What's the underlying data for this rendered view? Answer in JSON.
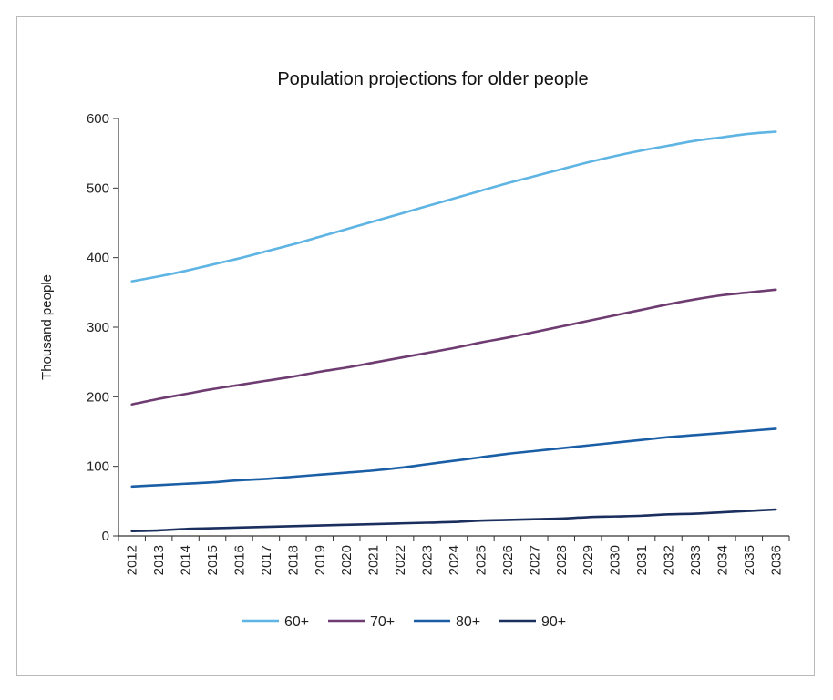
{
  "chart_data": {
    "type": "line",
    "title": "Population projections for older people",
    "xlabel": "",
    "ylabel": "Thousand people",
    "x": [
      "2012",
      "2013",
      "2014",
      "2015",
      "2016",
      "2017",
      "2018",
      "2019",
      "2020",
      "2021",
      "2022",
      "2023",
      "2024",
      "2025",
      "2026",
      "2027",
      "2028",
      "2029",
      "2030",
      "2031",
      "2032",
      "2033",
      "2034",
      "2035",
      "2036"
    ],
    "ylim": [
      0,
      600
    ],
    "yticks": [
      "0",
      "100",
      "200",
      "300",
      "400",
      "500",
      "600"
    ],
    "grid": false,
    "legend_position": "bottom",
    "series": [
      {
        "name": "60+",
        "color": "#5eb4e2",
        "values": [
          366,
          373,
          381,
          390,
          399,
          409,
          419,
          430,
          441,
          452,
          463,
          474,
          485,
          496,
          507,
          517,
          527,
          537,
          546,
          554,
          561,
          568,
          573,
          578,
          581
        ]
      },
      {
        "name": "70+",
        "color": "#6f3c72",
        "values": [
          189,
          197,
          204,
          211,
          217,
          223,
          229,
          236,
          242,
          249,
          256,
          263,
          270,
          278,
          285,
          293,
          301,
          309,
          317,
          325,
          333,
          340,
          346,
          350,
          354
        ]
      },
      {
        "name": "80+",
        "color": "#1a5fa6",
        "values": [
          71,
          73,
          75,
          77,
          80,
          82,
          85,
          88,
          91,
          94,
          98,
          103,
          108,
          113,
          118,
          122,
          126,
          130,
          134,
          138,
          142,
          145,
          148,
          151,
          154
        ]
      },
      {
        "name": "90+",
        "color": "#1b2f5e",
        "values": [
          7,
          8,
          10,
          11,
          12,
          13,
          14,
          15,
          16,
          17,
          18,
          19,
          20,
          22,
          23,
          24,
          25,
          27,
          28,
          29,
          31,
          32,
          34,
          36,
          38
        ]
      }
    ]
  }
}
